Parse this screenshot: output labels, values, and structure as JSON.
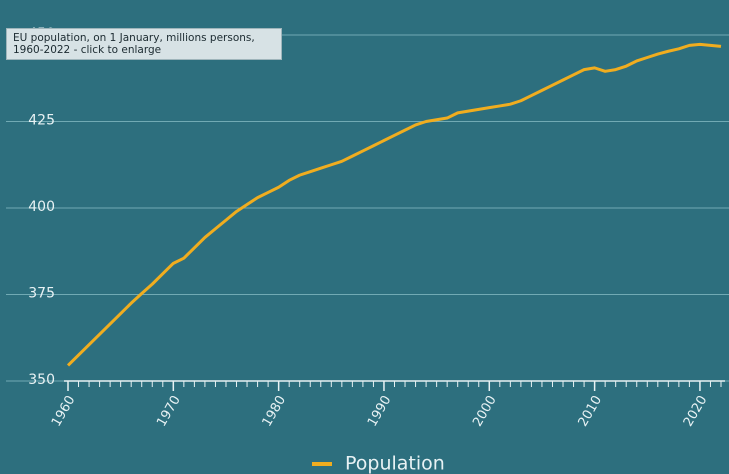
{
  "chart_data": {
    "type": "line",
    "tooltip": [
      "EU population, on 1 January, millions persons,",
      "1960-2022 - click to enlarge"
    ],
    "x": [
      1960,
      1961,
      1962,
      1963,
      1964,
      1965,
      1966,
      1967,
      1968,
      1969,
      1970,
      1971,
      1972,
      1973,
      1974,
      1975,
      1976,
      1977,
      1978,
      1979,
      1980,
      1981,
      1982,
      1983,
      1984,
      1985,
      1986,
      1987,
      1988,
      1989,
      1990,
      1991,
      1992,
      1993,
      1994,
      1995,
      1996,
      1997,
      1998,
      1999,
      2000,
      2001,
      2002,
      2003,
      2004,
      2005,
      2006,
      2007,
      2008,
      2009,
      2010,
      2011,
      2012,
      2013,
      2014,
      2015,
      2016,
      2017,
      2018,
      2019,
      2020,
      2021,
      2022
    ],
    "series": [
      {
        "name": "Population",
        "color": "#f0ad1f",
        "values": [
          354.5,
          357.5,
          360.5,
          363.5,
          366.5,
          369.5,
          372.5,
          375.3,
          378,
          381,
          384,
          385.5,
          388.5,
          391.5,
          394,
          396.5,
          399,
          401,
          403,
          404.5,
          406,
          408,
          409.5,
          410.5,
          411.5,
          412.5,
          413.5,
          415,
          416.5,
          418,
          419.5,
          421,
          422.5,
          424,
          425,
          425.5,
          426,
          427.5,
          428,
          428.5,
          429,
          429.5,
          430,
          431,
          432.5,
          434,
          435.5,
          437,
          438.5,
          440,
          440.5,
          439.5,
          440,
          441,
          442.5,
          443.5,
          444.5,
          445.3,
          446,
          447,
          447.3,
          447,
          446.7
        ]
      }
    ],
    "xlim": [
      1960,
      2022
    ],
    "xticks": [
      1960,
      1970,
      1980,
      1990,
      2000,
      2010,
      2020
    ],
    "ylim": [
      350,
      450
    ],
    "yticks": [
      350,
      375,
      400,
      425,
      450
    ],
    "grid": true
  }
}
